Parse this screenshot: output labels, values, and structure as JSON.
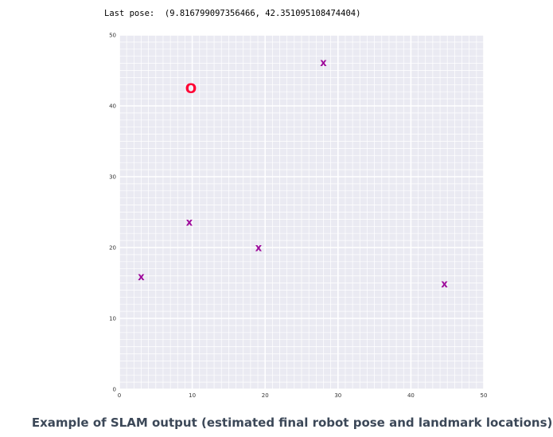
{
  "header": {
    "pose_label": "Last pose:",
    "pose_value": "(9.816799097356466, 42.351095108474404)"
  },
  "caption": "Example of SLAM output (estimated final robot pose and landmark locations).",
  "chart_data": {
    "type": "scatter",
    "title": "",
    "xlabel": "",
    "ylabel": "",
    "xlim": [
      0,
      50
    ],
    "ylim": [
      0,
      50
    ],
    "xticks": [
      0,
      10,
      20,
      30,
      40,
      50
    ],
    "yticks": [
      0,
      10,
      20,
      30,
      40,
      50
    ],
    "grid": true,
    "background": "#eaeaf2",
    "robot_pose": {
      "x": 9.816799097356466,
      "y": 42.351095108474404,
      "marker": "O",
      "color": "#ff0033"
    },
    "landmarks": {
      "marker": "x",
      "color": "#9e0a9b",
      "points": [
        {
          "x": 28,
          "y": 46
        },
        {
          "x": 9.6,
          "y": 23.5
        },
        {
          "x": 19.1,
          "y": 19.9
        },
        {
          "x": 3.0,
          "y": 15.8
        },
        {
          "x": 44.6,
          "y": 14.8
        }
      ]
    }
  }
}
